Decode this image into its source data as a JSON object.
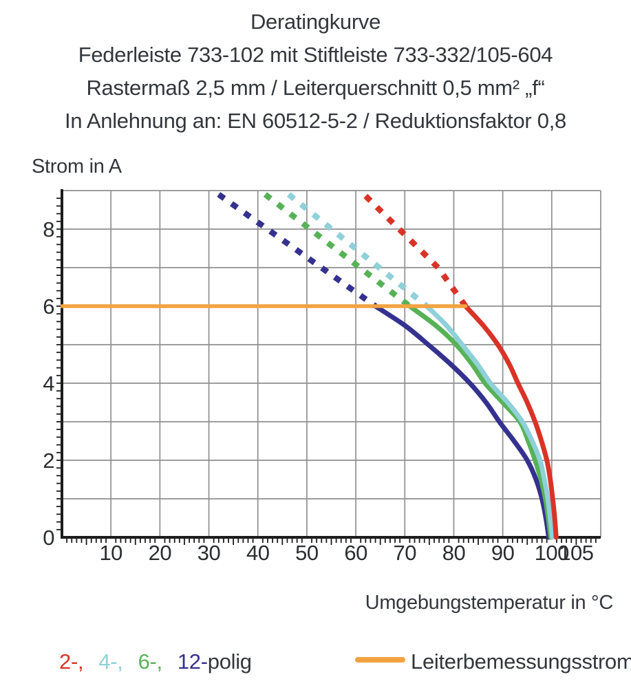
{
  "header": {
    "lines": [
      "Deratingkurve",
      "Federleiste 733-102 mit Stiftleiste 733-332/105-604",
      "Rastermaß 2,5 mm / Leiterquerschnitt 0,5 mm² „f“",
      "In Anlehnung an: EN 60512-5-2 / Reduktionsfaktor 0,8"
    ]
  },
  "axes": {
    "y_label": "Strom in A",
    "x_label": "Umgebungstemperatur in °C"
  },
  "legend": {
    "pole_items": [
      {
        "label": "2-,",
        "series": "2-polig",
        "color": "#d93327"
      },
      {
        "label": "4-,",
        "series": "4-polig",
        "color": "#8fd0d9"
      },
      {
        "label": "6-,",
        "series": "6-polig",
        "color": "#57b257"
      },
      {
        "label": "12-",
        "series": "12-polig",
        "color": "#35318f"
      }
    ],
    "pole_suffix": "polig",
    "rated_current": {
      "label": "Leiterbemessungsstrom",
      "color": "#f2a340"
    }
  },
  "chart_data": {
    "type": "line",
    "title": "Deratingkurve",
    "xlabel": "Umgebungstemperatur in °C",
    "ylabel": "Strom in A",
    "xlim": [
      0,
      110
    ],
    "ylim": [
      0,
      9
    ],
    "grid": true,
    "x_grid_step": 10,
    "y_grid_step": 1,
    "x_minor_tick_step": 1,
    "y_minor_tick_step": 0.2,
    "x_tick_values": [
      10,
      20,
      30,
      40,
      50,
      60,
      70,
      80,
      90,
      100,
      105
    ],
    "x_tick_labels": [
      "10",
      "20",
      "30",
      "40",
      "50",
      "60",
      "70",
      "80",
      "90",
      "100",
      "105"
    ],
    "y_tick_values": [
      0,
      2,
      4,
      6,
      8
    ],
    "y_tick_labels": [
      "0",
      "2",
      "4",
      "6",
      "8"
    ],
    "series": [
      {
        "name": "12-polig",
        "color": "#35318f",
        "dashed": [
          [
            32,
            8.9
          ],
          [
            64,
            6
          ]
        ],
        "solid": [
          [
            64,
            6
          ],
          [
            70,
            5.5
          ],
          [
            74.8,
            5
          ],
          [
            79.3,
            4.5
          ],
          [
            83.3,
            4
          ],
          [
            86.6,
            3.5
          ],
          [
            89.3,
            3
          ],
          [
            92.3,
            2.5
          ],
          [
            95,
            2
          ],
          [
            96.8,
            1.5
          ],
          [
            98,
            1
          ],
          [
            98.8,
            0.5
          ],
          [
            99.4,
            0
          ]
        ]
      },
      {
        "name": "6-polig",
        "color": "#57b257",
        "dashed": [
          [
            41.5,
            8.9
          ],
          [
            71,
            6
          ]
        ],
        "solid": [
          [
            71,
            6
          ],
          [
            76.3,
            5.5
          ],
          [
            80.5,
            5
          ],
          [
            83.7,
            4.5
          ],
          [
            86.4,
            4
          ],
          [
            90,
            3.5
          ],
          [
            93.5,
            3
          ],
          [
            95.2,
            2.5
          ],
          [
            96.6,
            2
          ],
          [
            97.8,
            1.5
          ],
          [
            98.7,
            1
          ],
          [
            99.3,
            0.5
          ],
          [
            99.8,
            0
          ]
        ]
      },
      {
        "name": "4-polig",
        "color": "#8fd0d9",
        "dashed": [
          [
            46.3,
            8.9
          ],
          [
            74.5,
            6
          ]
        ],
        "solid": [
          [
            74.5,
            6
          ],
          [
            78.5,
            5.5
          ],
          [
            81.7,
            5
          ],
          [
            84.8,
            4.5
          ],
          [
            87.5,
            4
          ],
          [
            91,
            3.5
          ],
          [
            94,
            3
          ],
          [
            96,
            2.5
          ],
          [
            97.6,
            2
          ],
          [
            98.5,
            1.5
          ],
          [
            99.2,
            1
          ],
          [
            99.7,
            0.5
          ],
          [
            100.1,
            0
          ]
        ]
      },
      {
        "name": "2-polig",
        "color": "#d93327",
        "dashed": [
          [
            62,
            8.86
          ],
          [
            76.8,
            7
          ],
          [
            82.4,
            6
          ]
        ],
        "solid": [
          [
            82.4,
            6
          ],
          [
            86,
            5.5
          ],
          [
            89,
            5
          ],
          [
            91.3,
            4.5
          ],
          [
            93.1,
            4
          ],
          [
            95,
            3.5
          ],
          [
            96.6,
            3
          ],
          [
            97.9,
            2.5
          ],
          [
            99,
            2
          ],
          [
            99.7,
            1.5
          ],
          [
            100.2,
            1
          ],
          [
            100.6,
            0.5
          ],
          [
            100.9,
            0
          ]
        ]
      },
      {
        "name": "Leiterbemessungsstrom",
        "color": "#f2a340",
        "width": 5.5,
        "solid": [
          [
            0,
            6
          ],
          [
            82.4,
            6
          ]
        ]
      }
    ]
  }
}
